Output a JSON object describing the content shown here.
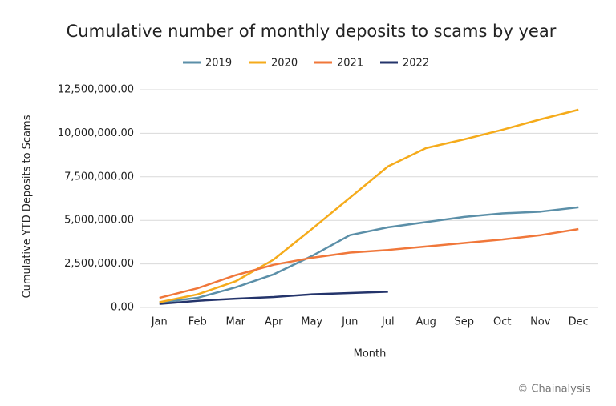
{
  "chart_data": {
    "type": "line",
    "title": "Cumulative number of monthly deposits to scams by year",
    "x_label": "Month",
    "y_label": "Cumulative YTD Deposits to Scams",
    "annotation": "© Chainalysis",
    "categories": [
      "Jan",
      "Feb",
      "Mar",
      "Apr",
      "May",
      "Jun",
      "Jul",
      "Aug",
      "Sep",
      "Oct",
      "Nov",
      "Dec"
    ],
    "series": [
      {
        "name": "2019",
        "color": "#5b8fa8",
        "values": [
          280000,
          550000,
          1150000,
          1900000,
          2950000,
          4150000,
          4600000,
          4900000,
          5200000,
          5400000,
          5500000,
          5750000
        ]
      },
      {
        "name": "2020",
        "color": "#f5ab1b",
        "values": [
          300000,
          750000,
          1500000,
          2750000,
          4500000,
          6300000,
          8100000,
          9150000,
          9650000,
          10200000,
          10800000,
          11350000
        ]
      },
      {
        "name": "2021",
        "color": "#f0773a",
        "values": [
          550000,
          1100000,
          1850000,
          2450000,
          2850000,
          3150000,
          3300000,
          3500000,
          3700000,
          3900000,
          4150000,
          4500000
        ]
      },
      {
        "name": "2022",
        "color": "#24346b",
        "values": [
          200000,
          380000,
          500000,
          600000,
          750000,
          830000,
          900000,
          null,
          null,
          null,
          null,
          null
        ]
      }
    ],
    "ylim": [
      0,
      12500000
    ],
    "yticks": [
      {
        "value": 0,
        "label": "0.00"
      },
      {
        "value": 2500000,
        "label": "2,500,000.00"
      },
      {
        "value": 5000000,
        "label": "5,000,000.00"
      },
      {
        "value": 7500000,
        "label": "7,500,000.00"
      },
      {
        "value": 10000000,
        "label": "10,000,000.00"
      },
      {
        "value": 12500000,
        "label": "12,500,000.00"
      }
    ],
    "grid": true,
    "legend": "top"
  }
}
